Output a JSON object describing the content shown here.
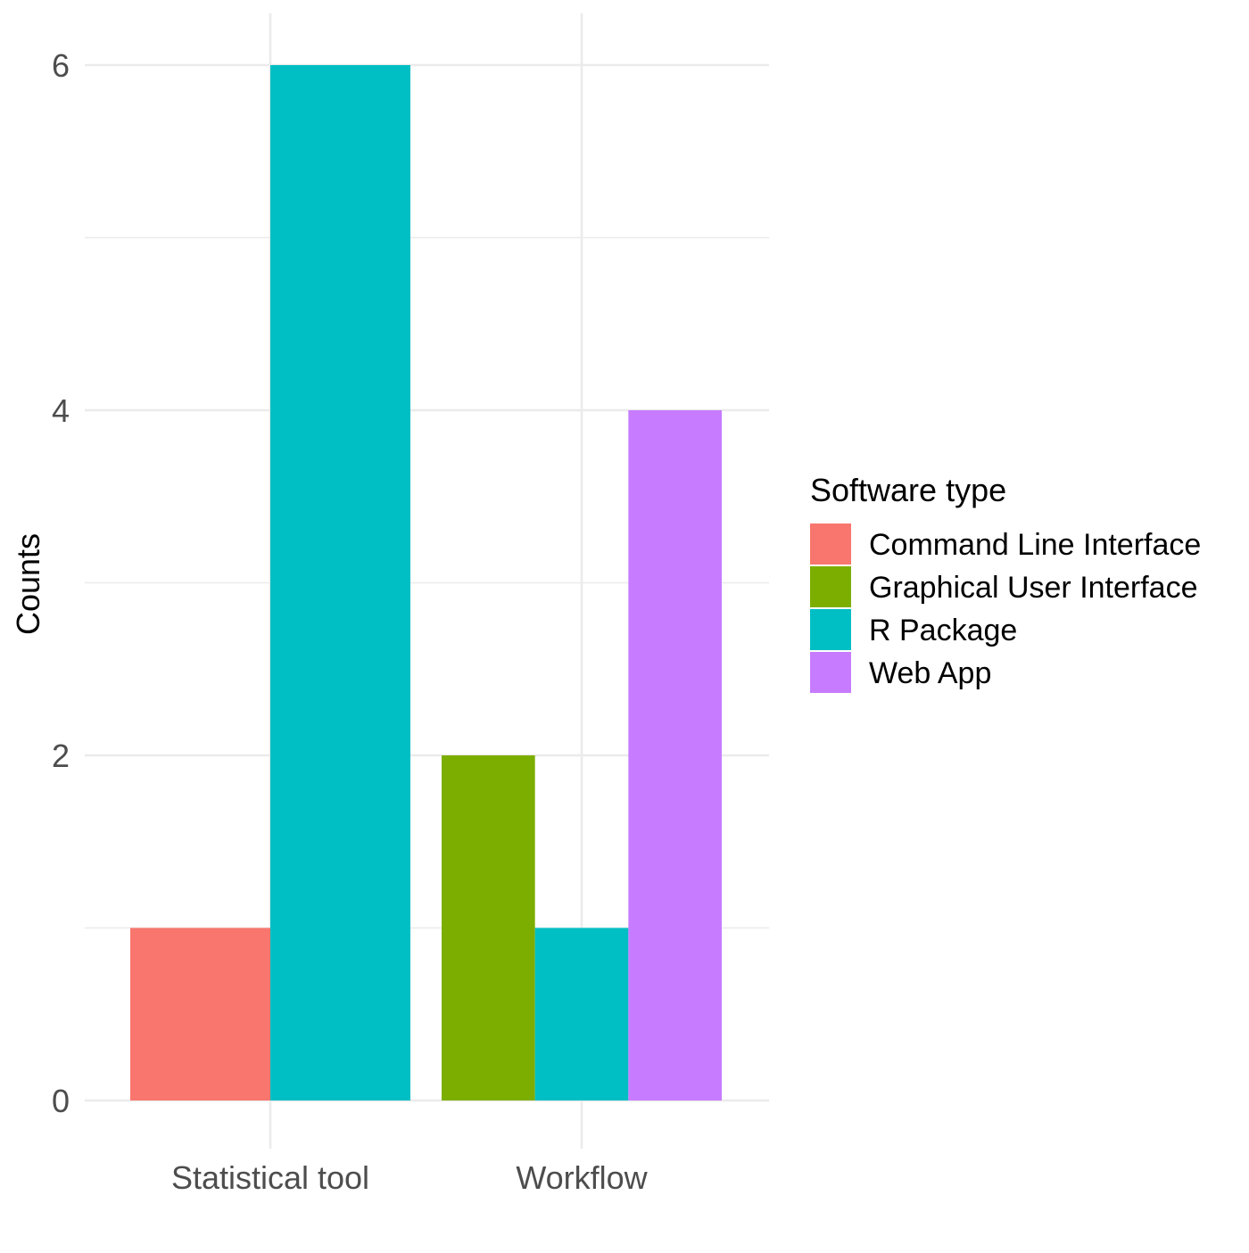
{
  "chart_data": {
    "type": "bar",
    "categories": [
      "Statistical tool",
      "Workflow"
    ],
    "series": [
      {
        "name": "Command Line Interface",
        "color": "#F8766D",
        "values": [
          1,
          null
        ]
      },
      {
        "name": "Graphical User Interface",
        "color": "#7CAE00",
        "values": [
          null,
          2
        ]
      },
      {
        "name": "R Package",
        "color": "#00BFC4",
        "values": [
          6,
          1
        ]
      },
      {
        "name": "Web App",
        "color": "#C77CFF",
        "values": [
          null,
          4
        ]
      }
    ],
    "title": "",
    "xlabel": "",
    "ylabel": "Counts",
    "ylim": [
      0,
      6
    ],
    "yticks": [
      "0",
      "2",
      "4",
      "6"
    ],
    "grid": true,
    "legend": {
      "title": "Software type",
      "placement": "right"
    }
  }
}
